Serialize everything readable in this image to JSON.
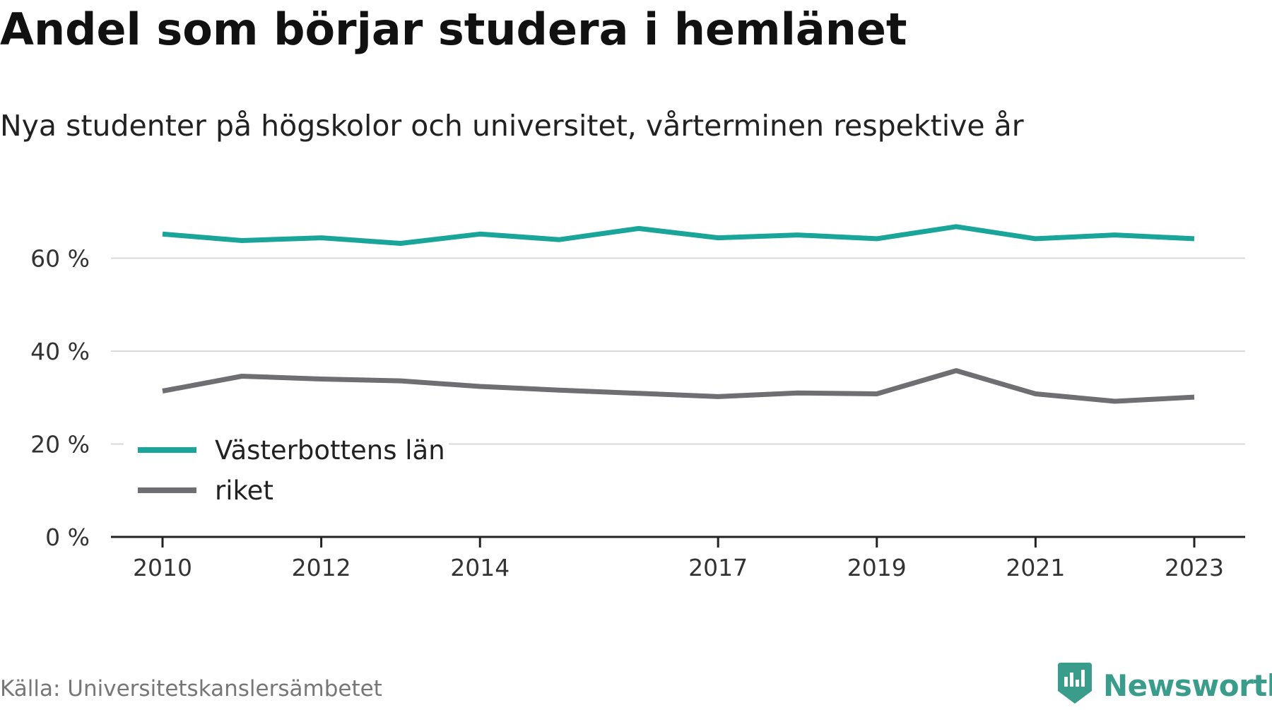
{
  "title": "Andel som börjar studera i hemlänet",
  "subtitle": "Nya studenter på högskolor och universitet, vårterminen respektive år",
  "source": "Källa: Universitetskanslersämbetet",
  "brand": {
    "name": "Newsworthy",
    "icon": "newsworthy-logo-icon",
    "color": "#3a9d8b"
  },
  "chart_data": {
    "type": "line",
    "title": "Andel som börjar studera i hemlänet",
    "subtitle": "Nya studenter på högskolor och universitet, vårterminen respektive år",
    "xlabel": "",
    "ylabel": "",
    "x": [
      2010,
      2011,
      2012,
      2013,
      2014,
      2015,
      2016,
      2017,
      2018,
      2019,
      2020,
      2021,
      2022,
      2023
    ],
    "x_ticks": [
      2010,
      2012,
      2014,
      2017,
      2019,
      2021,
      2023
    ],
    "x_tick_labels": [
      "2010",
      "2012",
      "2014",
      "2017",
      "2019",
      "2021",
      "2023"
    ],
    "xlim": [
      2009.6,
      2023.7
    ],
    "ylim": [
      0,
      70
    ],
    "y_ticks": [
      0,
      20,
      40,
      60
    ],
    "y_tick_labels": [
      "0 %",
      "20 %",
      "40 %",
      "60 %"
    ],
    "grid": true,
    "legend": "bottom-left",
    "series": [
      {
        "name": "Västerbottens län",
        "color": "#1aa59a",
        "values": [
          65.2,
          63.8,
          64.4,
          63.2,
          65.2,
          64.0,
          66.4,
          64.4,
          65.0,
          64.2,
          66.8,
          64.2,
          65.0,
          64.2
        ]
      },
      {
        "name": "riket",
        "color": "#6e6e73",
        "values": [
          31.4,
          34.6,
          34.0,
          33.6,
          32.4,
          31.6,
          30.9,
          30.2,
          31.0,
          30.8,
          35.8,
          30.8,
          29.2,
          30.1
        ]
      }
    ]
  }
}
